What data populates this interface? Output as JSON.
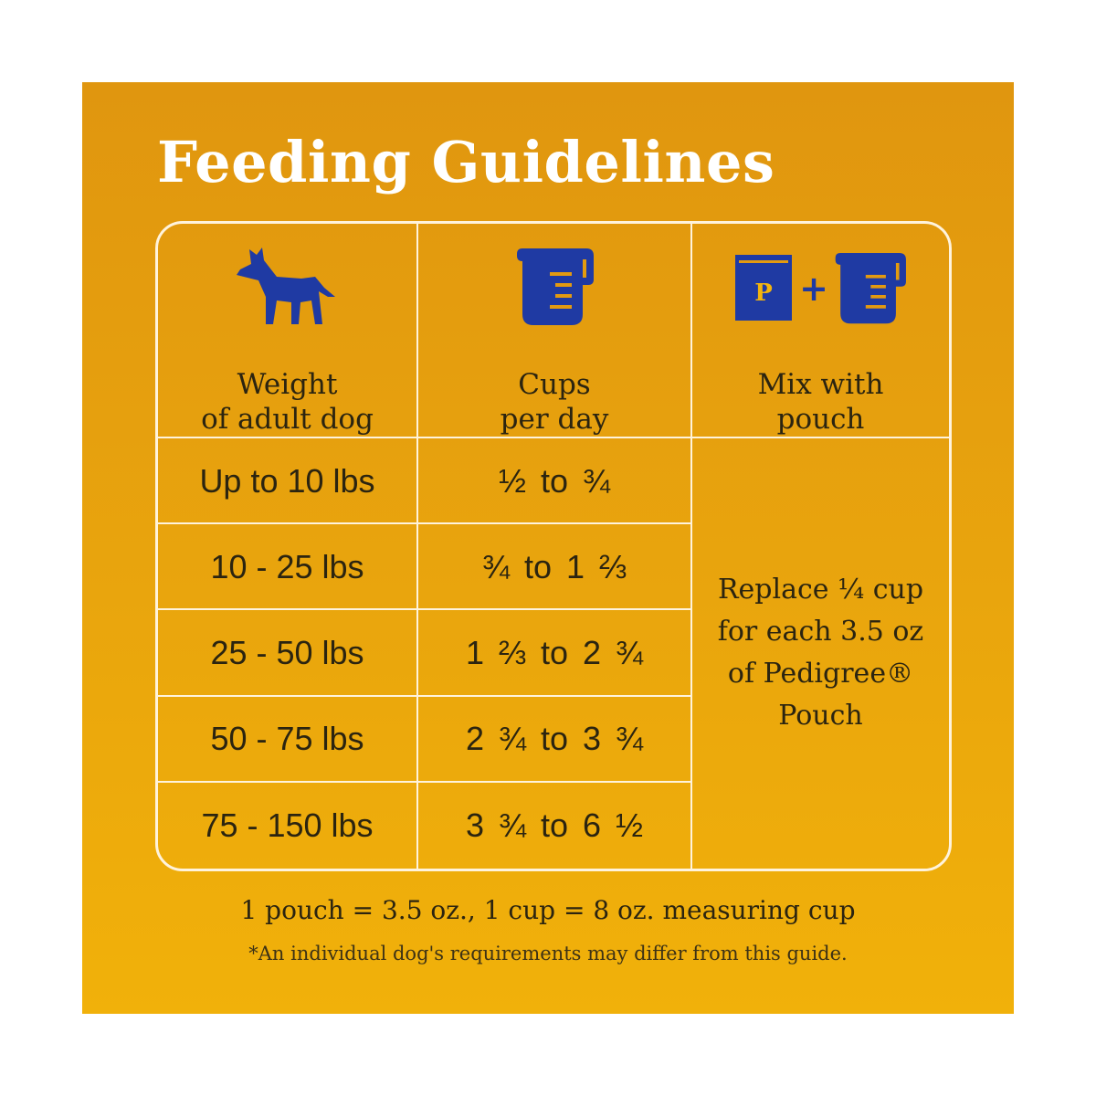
{
  "title": "Feeding Guidelines",
  "columns": [
    {
      "label": "Weight\nof adult dog",
      "icon": "dog-icon"
    },
    {
      "label": "Cups\nper day",
      "icon": "measuring-cup-icon"
    },
    {
      "label": "Mix with\npouch",
      "icon": "pouch-plus-cup-icon"
    }
  ],
  "rows": [
    {
      "weight": "Up to 10 lbs",
      "cups": "½ to ¾"
    },
    {
      "weight": "10 - 25 lbs",
      "cups": "¾ to 1 ⅔"
    },
    {
      "weight": "25 - 50 lbs",
      "cups": "1 ⅔ to 2 ¾"
    },
    {
      "weight": "50 - 75 lbs",
      "cups": "2 ¾ to 3 ¾"
    },
    {
      "weight": "75 - 150 lbs",
      "cups": "3 ¾ to 6 ½"
    }
  ],
  "mix_text": "Replace ¼ cup\nfor each 3.5 oz\nof Pedigree®\nPouch",
  "pouch_letter": "P",
  "plus_sign": "+",
  "footnote_measure": "1 pouch = 3.5 oz., 1 cup = 8 oz. measuring cup",
  "footnote_disclaimer": "*An individual dog's requirements may differ from this guide.",
  "colors": {
    "background_top": "#e0960f",
    "background_bottom": "#f1b10a",
    "title": "#ffffff",
    "icon_blue": "#1f3aa3",
    "grid_line": "#fff3dc",
    "text": "#2b2410"
  }
}
